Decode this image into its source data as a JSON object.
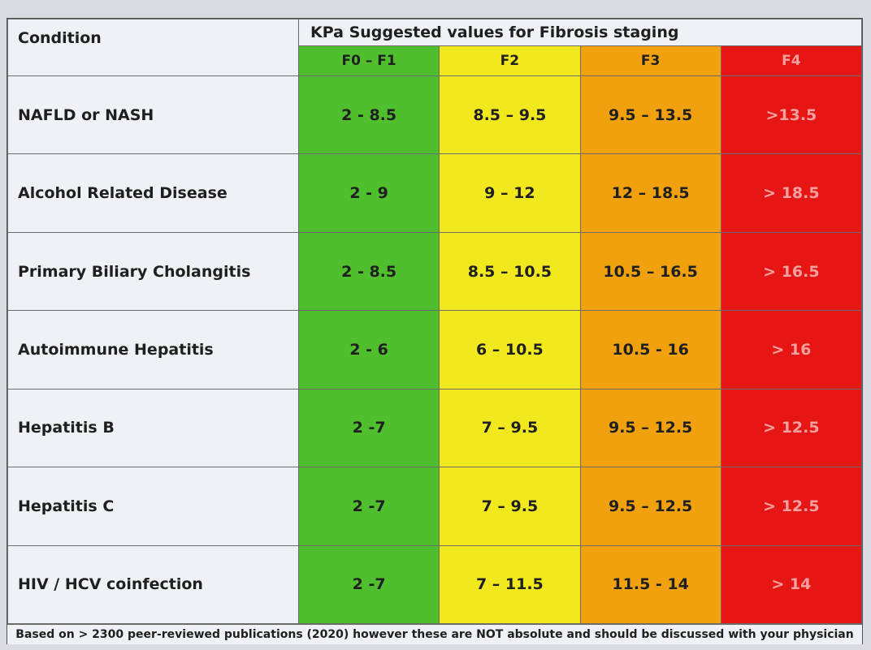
{
  "header": {
    "condition_label": "Condition",
    "group_title": "KPa Suggested values for Fibrosis staging",
    "stages": [
      "F0 – F1",
      "F2",
      "F3",
      "F4"
    ]
  },
  "colors": {
    "f0_f1": "#4fbf2e",
    "f2": "#f1e81e",
    "f3": "#f1a10d",
    "f4": "#e61614"
  },
  "rows": [
    {
      "condition": "NAFLD or NASH",
      "values": [
        "2 - 8.5",
        "8.5 – 9.5",
        "9.5 – 13.5",
        ">13.5"
      ]
    },
    {
      "condition": "Alcohol Related Disease",
      "values": [
        "2 - 9",
        "9 – 12",
        "12 – 18.5",
        "> 18.5"
      ]
    },
    {
      "condition": "Primary Biliary Cholangitis",
      "values": [
        "2 - 8.5",
        "8.5 – 10.5",
        "10.5 – 16.5",
        "> 16.5"
      ]
    },
    {
      "condition": "Autoimmune Hepatitis",
      "values": [
        "2 - 6",
        "6 – 10.5",
        "10.5 - 16",
        "> 16"
      ]
    },
    {
      "condition": "Hepatitis B",
      "values": [
        "2 -7",
        "7 – 9.5",
        "9.5 – 12.5",
        "> 12.5"
      ]
    },
    {
      "condition": "Hepatitis C",
      "values": [
        "2 -7",
        "7 – 9.5",
        "9.5 – 12.5",
        "> 12.5"
      ]
    },
    {
      "condition": "HIV / HCV coinfection",
      "values": [
        "2 -7",
        "7 – 11.5",
        "11.5 - 14",
        "> 14"
      ]
    }
  ],
  "footnote": "Based on > 2300 peer-reviewed publications (2020) however these are NOT absolute and should be discussed with your physician"
}
